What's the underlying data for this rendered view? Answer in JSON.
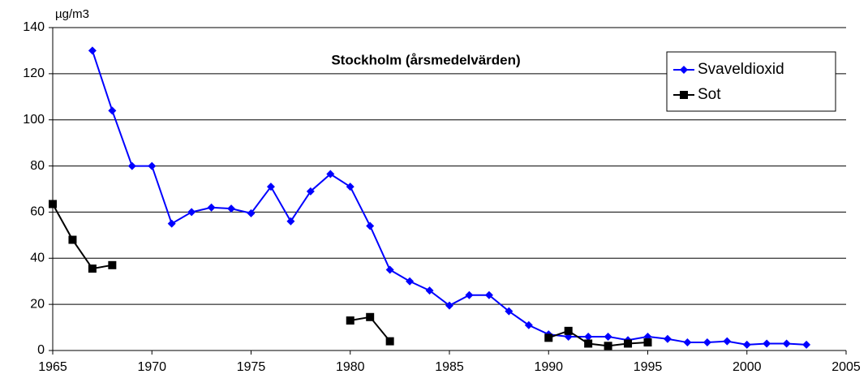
{
  "chart_data": {
    "type": "line",
    "title": "Stockholm (årsmedelvärden)",
    "y_unit": "µg/m3",
    "x": [
      1965,
      1966,
      1967,
      1968,
      1969,
      1970,
      1971,
      1972,
      1973,
      1974,
      1975,
      1976,
      1977,
      1978,
      1979,
      1980,
      1981,
      1982,
      1983,
      1984,
      1985,
      1986,
      1987,
      1988,
      1989,
      1990,
      1991,
      1992,
      1993,
      1994,
      1995,
      1996,
      1997,
      1998,
      1999,
      2000,
      2001,
      2002,
      2003
    ],
    "series": [
      {
        "name": "Svaveldioxid",
        "color": "#0000ff",
        "marker": "diamond",
        "values": [
          null,
          null,
          130,
          104,
          80,
          80,
          55,
          60,
          62,
          61.5,
          59.5,
          71,
          56,
          69,
          76.5,
          71,
          54,
          35,
          30,
          26,
          19.5,
          24,
          24,
          17,
          11,
          7,
          6,
          6,
          6,
          4.5,
          6,
          5,
          3.5,
          3.5,
          4,
          2.5,
          3,
          3,
          2.5
        ]
      },
      {
        "name": "Sot",
        "color": "#000000",
        "marker": "square",
        "values": [
          63.5,
          48,
          35.5,
          37,
          null,
          null,
          null,
          null,
          null,
          null,
          null,
          null,
          null,
          null,
          null,
          13,
          14.5,
          4,
          null,
          null,
          null,
          null,
          null,
          null,
          null,
          5.5,
          8.5,
          3,
          2,
          3,
          3.5,
          null,
          null,
          null,
          null,
          null,
          null,
          null,
          null
        ]
      }
    ],
    "xlim": [
      1965,
      2005
    ],
    "xticks": [
      1965,
      1970,
      1975,
      1980,
      1985,
      1990,
      1995,
      2000,
      2005
    ],
    "ylim": [
      0,
      140
    ],
    "yticks": [
      0,
      20,
      40,
      60,
      80,
      100,
      120,
      140
    ],
    "grid": true
  }
}
